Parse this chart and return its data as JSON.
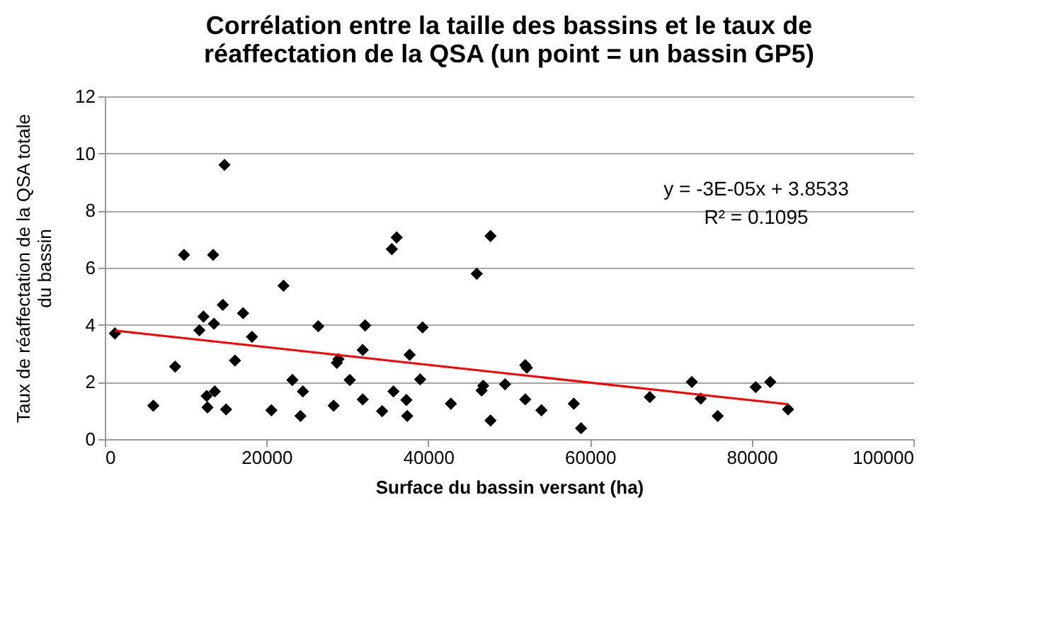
{
  "chart_data": {
    "type": "scatter",
    "title": "Corrélation entre la taille des bassins et le taux de réaffectation de la QSA (un point = un bassin GP5)",
    "xlabel": "Surface du bassin versant (ha)",
    "ylabel": "Taux de réaffectation de la QSA totale du bassin",
    "xlim": [
      0,
      100000
    ],
    "xticks": [
      0,
      20000,
      40000,
      60000,
      80000,
      100000
    ],
    "ylim": [
      0,
      12
    ],
    "yticks": [
      0,
      2,
      4,
      6,
      8,
      10,
      12
    ],
    "grid": "y",
    "marker": "diamond",
    "annotations": [
      "y = -3E-05x + 3.8533",
      "R² = 0.1095"
    ],
    "series": [
      {
        "color": "#000000",
        "x": [
          1250,
          6000,
          8700,
          9800,
          11700,
          12200,
          13500,
          13400,
          12600,
          13600,
          12700,
          14800,
          14600,
          15000,
          16100,
          17100,
          18200,
          20600,
          22100,
          23200,
          24500,
          24200,
          26400,
          28300,
          28700,
          28900,
          30300,
          31900,
          31900,
          32200,
          34300,
          35500,
          36100,
          35700,
          37400,
          37300,
          37700,
          39000,
          39300,
          42800,
          46000,
          46800,
          46600,
          47700,
          47700,
          49500,
          52000,
          52200,
          52000,
          54000,
          58000,
          58900,
          67400,
          72600,
          73700,
          75800,
          80500,
          82300,
          84500
        ],
        "values": [
          3.7,
          1.17,
          2.54,
          6.45,
          3.81,
          4.29,
          4.04,
          6.45,
          1.51,
          1.67,
          1.11,
          9.6,
          4.7,
          1.04,
          2.75,
          4.41,
          3.58,
          1.01,
          5.37,
          2.07,
          1.67,
          0.81,
          3.95,
          1.17,
          2.67,
          2.8,
          2.07,
          1.39,
          3.12,
          3.98,
          0.98,
          6.65,
          7.06,
          1.67,
          0.81,
          1.37,
          2.95,
          2.09,
          3.91,
          1.24,
          5.79,
          1.87,
          1.7,
          7.11,
          0.65,
          1.92,
          2.59,
          2.5,
          1.39,
          1.01,
          1.24,
          0.38,
          1.47,
          2.0,
          1.42,
          0.81,
          1.82,
          2.0,
          1.04
        ]
      },
      {
        "type": "line",
        "marker": "none",
        "color": "#ff0000",
        "x": [
          1250,
          84500
        ],
        "values": [
          3.8,
          1.22
        ]
      }
    ]
  }
}
